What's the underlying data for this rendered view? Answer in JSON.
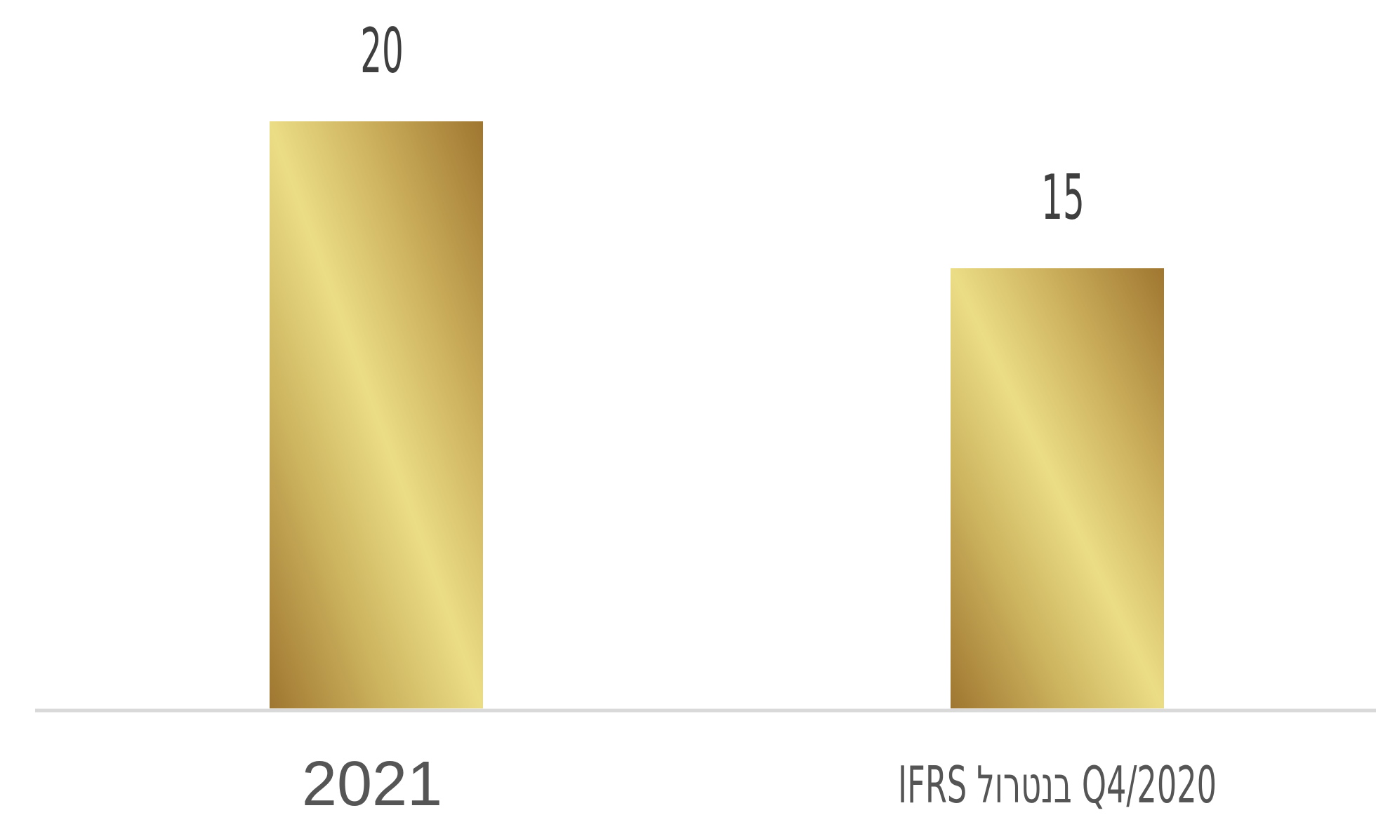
{
  "chart_data": {
    "type": "bar",
    "categories": [
      "2021",
      "Q4/2020 בנטרול IFRS"
    ],
    "values": [
      20,
      15
    ],
    "data_labels": [
      "20",
      "15"
    ],
    "title": "",
    "xlabel": "",
    "ylabel": "",
    "ylim": [
      0,
      20
    ],
    "grid": false,
    "legend": "none"
  },
  "colors": {
    "bar_light": "#ebdd86",
    "bar_dark": "#9f7630",
    "baseline": "#d9d9d9",
    "value_text": "#3f3f3f",
    "category_text": "#555555"
  }
}
